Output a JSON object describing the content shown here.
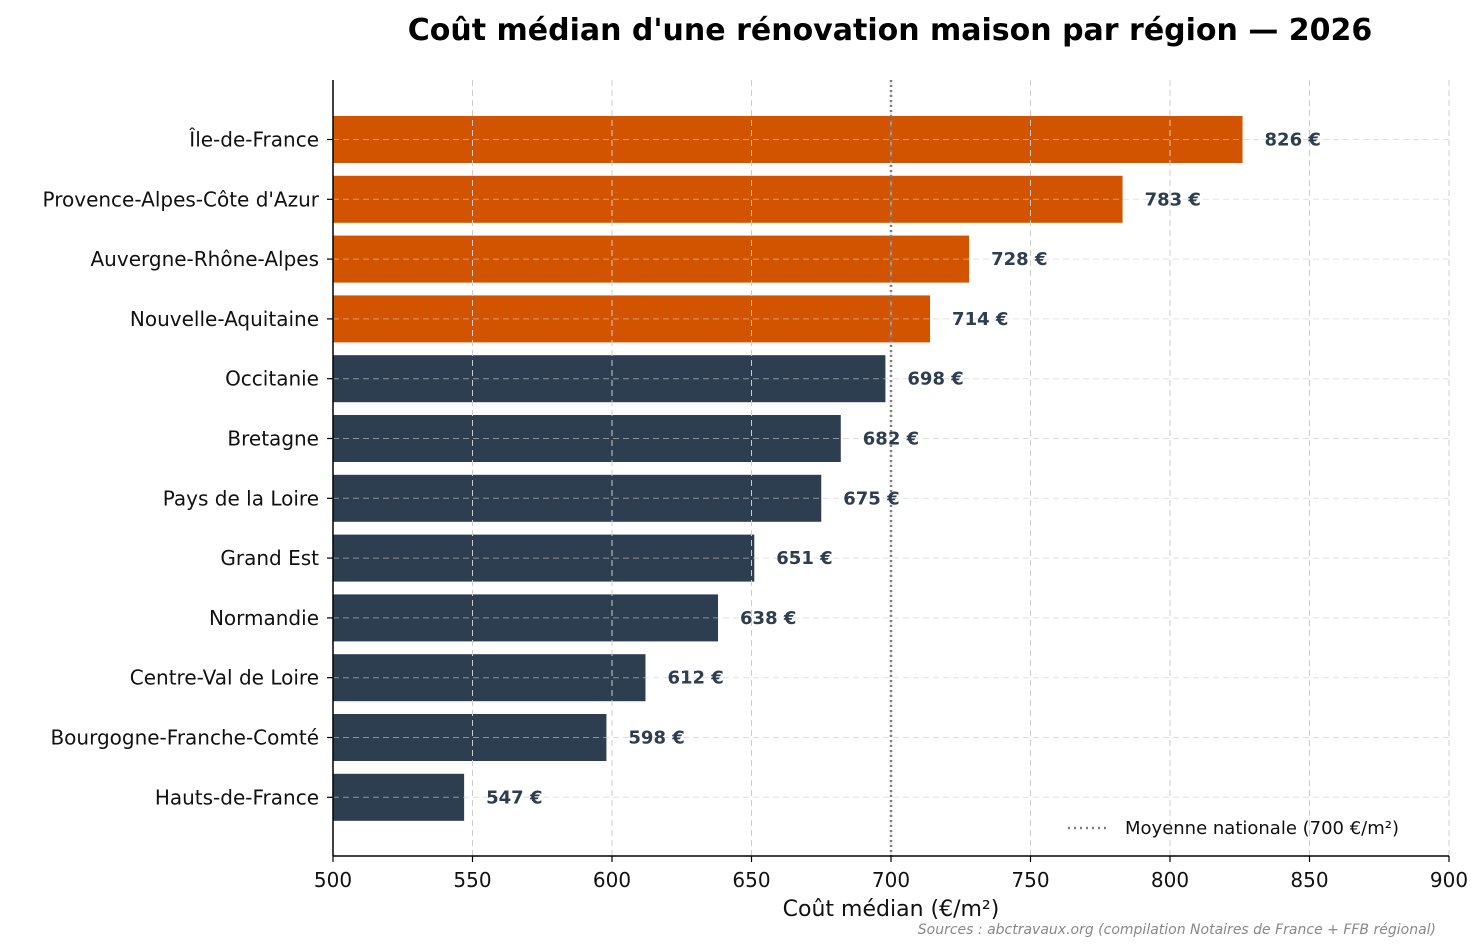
{
  "chart_data": {
    "type": "bar",
    "orientation": "horizontal",
    "title": "Coût médian d'une rénovation maison par région — 2026",
    "xlabel": "Coût médian (€/m²)",
    "ylabel": "",
    "xlim": [
      500,
      900
    ],
    "xticks": [
      500,
      550,
      600,
      650,
      700,
      750,
      800,
      850,
      900
    ],
    "grid": true,
    "categories": [
      "Île-de-France",
      "Provence-Alpes-Côte d'Azur",
      "Auvergne-Rhône-Alpes",
      "Nouvelle-Aquitaine",
      "Occitanie",
      "Bretagne",
      "Pays de la Loire",
      "Grand Est",
      "Normandie",
      "Centre-Val de Loire",
      "Bourgogne-Franche-Comté",
      "Hauts-de-France"
    ],
    "values": [
      826,
      783,
      728,
      714,
      698,
      682,
      675,
      651,
      638,
      612,
      598,
      547
    ],
    "value_labels": [
      "826 €",
      "783 €",
      "728 €",
      "714 €",
      "698 €",
      "682 €",
      "675 €",
      "651 €",
      "638 €",
      "612 €",
      "598 €",
      "547 €"
    ],
    "colors": {
      "above_average": "#d35400",
      "below_average": "#2c3e50",
      "reference_line": "#7f7f7f",
      "value_text": "#2c3e50"
    },
    "reference_line": {
      "value": 700,
      "style": "dotted",
      "label": "Moyenne nationale (700 €/m²)"
    },
    "legend": {
      "placement": "bottom-right"
    },
    "source": "Sources : abctravaux.org (compilation Notaires de France + FFB régional)"
  }
}
